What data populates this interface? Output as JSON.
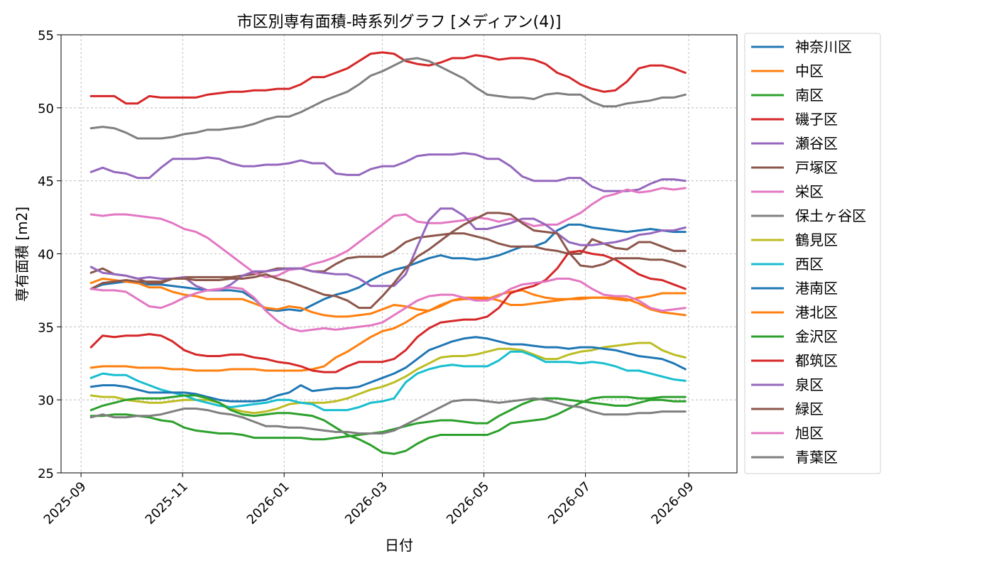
{
  "chart_data": {
    "type": "line",
    "title": "市区別専有面積-時系列グラフ [メディアン(4)]",
    "xlabel": "日付",
    "ylabel": "専有面積 [m2]",
    "xlim": [
      "2025-08-20",
      "2026-09-30"
    ],
    "ylim": [
      25,
      55
    ],
    "x_ticks": [
      "2025-09",
      "2025-11",
      "2026-01",
      "2026-03",
      "2026-05",
      "2026-07",
      "2026-09"
    ],
    "y_ticks": [
      25,
      30,
      35,
      40,
      45,
      50,
      55
    ],
    "grid": true,
    "legend_position": "outside-right",
    "x": [
      "2025-09-07",
      "2025-09-14",
      "2025-09-21",
      "2025-09-28",
      "2025-10-05",
      "2025-10-12",
      "2025-10-19",
      "2025-10-26",
      "2025-11-02",
      "2025-11-09",
      "2025-11-16",
      "2025-11-23",
      "2025-11-30",
      "2025-12-07",
      "2025-12-14",
      "2025-12-21",
      "2025-12-28",
      "2026-01-04",
      "2026-01-11",
      "2026-01-18",
      "2026-01-25",
      "2026-02-01",
      "2026-02-08",
      "2026-02-15",
      "2026-02-22",
      "2026-03-01",
      "2026-03-08",
      "2026-03-15",
      "2026-03-22",
      "2026-03-29",
      "2026-04-05",
      "2026-04-12",
      "2026-04-19",
      "2026-04-26",
      "2026-05-03",
      "2026-05-10",
      "2026-05-17",
      "2026-05-24",
      "2026-05-31",
      "2026-06-07",
      "2026-06-14",
      "2026-06-21",
      "2026-06-28",
      "2026-07-05",
      "2026-07-12",
      "2026-07-19",
      "2026-07-26",
      "2026-08-02",
      "2026-08-09",
      "2026-08-16",
      "2026-08-23",
      "2026-08-30"
    ],
    "series": [
      {
        "name": "神奈川区",
        "color": "#1f77b4",
        "values": [
          37.6,
          37.9,
          38.0,
          38.1,
          38.0,
          37.9,
          37.9,
          37.8,
          37.7,
          37.6,
          37.5,
          37.5,
          37.5,
          37.4,
          36.9,
          36.2,
          36.1,
          36.2,
          36.1,
          36.5,
          36.9,
          37.2,
          37.4,
          37.7,
          38.2,
          38.6,
          38.9,
          39.1,
          39.4,
          39.7,
          39.9,
          39.7,
          39.7,
          39.6,
          39.7,
          39.9,
          40.2,
          40.5,
          40.5,
          40.8,
          41.6,
          42.0,
          42.0,
          41.8,
          41.7,
          41.6,
          41.5,
          41.6,
          41.7,
          41.6,
          41.5,
          41.5
        ]
      },
      {
        "name": "中区",
        "color": "#ff7f0e",
        "values": [
          38.0,
          38.3,
          38.2,
          38.1,
          38.0,
          37.7,
          37.7,
          37.4,
          37.2,
          37.1,
          36.9,
          36.9,
          36.9,
          36.9,
          36.6,
          36.3,
          36.2,
          36.4,
          36.3,
          36.0,
          35.8,
          35.7,
          35.7,
          35.8,
          35.9,
          36.2,
          36.5,
          36.4,
          36.2,
          36.1,
          36.4,
          36.8,
          37.0,
          37.0,
          37.0,
          36.8,
          36.5,
          36.5,
          36.6,
          36.7,
          36.8,
          36.9,
          37.0,
          37.0,
          37.0,
          37.0,
          36.9,
          36.6,
          36.2,
          36.0,
          35.9,
          35.8
        ]
      },
      {
        "name": "南区",
        "color": "#2ca02c",
        "values": [
          28.9,
          28.9,
          29.0,
          29.0,
          28.9,
          28.8,
          28.6,
          28.5,
          28.1,
          27.9,
          27.8,
          27.7,
          27.7,
          27.6,
          27.4,
          27.4,
          27.4,
          27.4,
          27.4,
          27.3,
          27.3,
          27.4,
          27.5,
          27.6,
          27.7,
          27.8,
          28.0,
          28.2,
          28.4,
          28.5,
          28.6,
          28.6,
          28.5,
          28.4,
          28.4,
          28.9,
          29.3,
          29.7,
          30.0,
          30.1,
          30.1,
          30.0,
          29.9,
          29.8,
          29.7,
          29.6,
          29.6,
          29.8,
          30.0,
          30.0,
          29.9,
          29.9
        ]
      },
      {
        "name": "磯子区",
        "color": "#d62728",
        "values": [
          50.8,
          50.8,
          50.8,
          50.3,
          50.3,
          50.8,
          50.7,
          50.7,
          50.7,
          50.7,
          50.9,
          51.0,
          51.1,
          51.1,
          51.2,
          51.2,
          51.3,
          51.3,
          51.6,
          52.1,
          52.1,
          52.4,
          52.7,
          53.2,
          53.7,
          53.8,
          53.7,
          53.2,
          53.0,
          52.9,
          53.1,
          53.4,
          53.4,
          53.6,
          53.5,
          53.3,
          53.4,
          53.4,
          53.3,
          53.0,
          52.4,
          52.1,
          51.6,
          51.3,
          51.1,
          51.2,
          51.8,
          52.7,
          52.9,
          52.9,
          52.7,
          52.4
        ]
      },
      {
        "name": "瀬谷区",
        "color": "#9467bd",
        "values": [
          45.6,
          45.9,
          45.6,
          45.5,
          45.2,
          45.2,
          45.9,
          46.5,
          46.5,
          46.5,
          46.6,
          46.5,
          46.2,
          46.0,
          46.0,
          46.1,
          46.1,
          46.2,
          46.4,
          46.2,
          46.2,
          45.5,
          45.4,
          45.4,
          45.8,
          46.0,
          46.0,
          46.3,
          46.7,
          46.8,
          46.8,
          46.8,
          46.9,
          46.8,
          46.5,
          46.5,
          46.0,
          45.3,
          45.0,
          45.0,
          45.0,
          45.2,
          45.2,
          44.6,
          44.3,
          44.3,
          44.3,
          44.4,
          44.8,
          45.1,
          45.1,
          45.0
        ]
      },
      {
        "name": "戸塚区",
        "color": "#8c564b",
        "values": [
          38.7,
          39.0,
          38.6,
          38.5,
          38.3,
          38.0,
          38.0,
          38.3,
          38.4,
          38.4,
          38.4,
          38.4,
          38.4,
          38.5,
          38.6,
          38.8,
          39.0,
          39.0,
          39.0,
          38.8,
          38.8,
          39.3,
          39.7,
          39.8,
          39.8,
          39.8,
          40.2,
          40.8,
          41.1,
          41.2,
          41.3,
          41.4,
          41.4,
          41.2,
          41.0,
          40.7,
          40.5,
          40.5,
          40.5,
          40.3,
          40.2,
          40.0,
          40.0,
          41.0,
          40.7,
          40.4,
          40.3,
          40.8,
          40.8,
          40.5,
          40.2,
          40.2
        ]
      },
      {
        "name": "栄区",
        "color": "#e377c2",
        "values": [
          42.7,
          42.6,
          42.7,
          42.7,
          42.6,
          42.5,
          42.4,
          42.1,
          41.7,
          41.5,
          41.1,
          40.5,
          39.9,
          39.3,
          38.7,
          38.4,
          38.5,
          38.9,
          39.0,
          39.3,
          39.5,
          39.8,
          40.2,
          40.8,
          41.4,
          42.0,
          42.6,
          42.7,
          42.2,
          42.1,
          42.1,
          42.2,
          42.3,
          42.5,
          42.4,
          42.2,
          42.4,
          42.2,
          41.9,
          42.0,
          42.0,
          42.4,
          42.8,
          43.4,
          43.9,
          44.1,
          44.4,
          44.2,
          44.3,
          44.5,
          44.4,
          44.5
        ]
      },
      {
        "name": "保土ヶ谷区",
        "color": "#7f7f7f",
        "values": [
          48.6,
          48.7,
          48.6,
          48.3,
          47.9,
          47.9,
          47.9,
          48.0,
          48.2,
          48.3,
          48.5,
          48.5,
          48.6,
          48.7,
          48.9,
          49.2,
          49.4,
          49.4,
          49.7,
          50.1,
          50.5,
          50.8,
          51.1,
          51.6,
          52.2,
          52.5,
          52.9,
          53.3,
          53.4,
          53.2,
          52.8,
          52.4,
          52.0,
          51.4,
          50.9,
          50.8,
          50.7,
          50.7,
          50.6,
          50.9,
          51.0,
          50.9,
          50.9,
          50.4,
          50.1,
          50.1,
          50.3,
          50.4,
          50.5,
          50.7,
          50.7,
          50.9
        ]
      },
      {
        "name": "鶴見区",
        "color": "#bcbd22",
        "values": [
          30.3,
          30.2,
          30.2,
          30.0,
          29.9,
          29.8,
          29.8,
          29.9,
          30.0,
          30.0,
          30.0,
          29.8,
          29.4,
          29.2,
          29.1,
          29.2,
          29.4,
          29.7,
          29.8,
          29.8,
          29.8,
          29.9,
          30.1,
          30.4,
          30.7,
          30.9,
          31.2,
          31.6,
          32.1,
          32.5,
          32.9,
          33.0,
          33.0,
          33.1,
          33.3,
          33.5,
          33.5,
          33.4,
          33.1,
          32.8,
          32.8,
          33.1,
          33.3,
          33.4,
          33.6,
          33.7,
          33.8,
          33.9,
          33.9,
          33.4,
          33.1,
          32.9
        ]
      },
      {
        "name": "西区",
        "color": "#17becf",
        "values": [
          31.5,
          31.8,
          31.7,
          31.7,
          31.3,
          31.0,
          30.7,
          30.5,
          30.3,
          30.0,
          29.8,
          29.6,
          29.5,
          29.6,
          29.7,
          29.8,
          30.0,
          30.0,
          29.8,
          29.7,
          29.3,
          29.3,
          29.3,
          29.5,
          29.8,
          29.9,
          30.1,
          31.2,
          31.8,
          32.1,
          32.3,
          32.4,
          32.3,
          32.3,
          32.3,
          32.7,
          33.3,
          33.3,
          33.0,
          32.6,
          32.6,
          32.6,
          32.5,
          32.6,
          32.5,
          32.3,
          32.0,
          32.0,
          31.8,
          31.6,
          31.4,
          31.3
        ]
      },
      {
        "name": "港南区",
        "color": "#1f77b4",
        "values": [
          30.9,
          31.0,
          31.0,
          30.9,
          30.7,
          30.5,
          30.5,
          30.5,
          30.5,
          30.4,
          30.2,
          30.0,
          29.9,
          29.9,
          29.9,
          30.0,
          30.3,
          30.5,
          31.0,
          30.6,
          30.7,
          30.8,
          30.8,
          30.9,
          31.2,
          31.5,
          31.8,
          32.2,
          32.8,
          33.4,
          33.7,
          34.0,
          34.2,
          34.3,
          34.2,
          34.0,
          33.8,
          33.8,
          33.7,
          33.6,
          33.6,
          33.5,
          33.6,
          33.6,
          33.5,
          33.4,
          33.2,
          33.0,
          32.9,
          32.8,
          32.5,
          32.1
        ]
      },
      {
        "name": "港北区",
        "color": "#ff7f0e",
        "values": [
          32.2,
          32.3,
          32.3,
          32.3,
          32.2,
          32.2,
          32.2,
          32.1,
          32.1,
          32.0,
          32.0,
          32.0,
          32.1,
          32.1,
          32.1,
          32.0,
          32.0,
          32.0,
          32.0,
          32.1,
          32.3,
          32.9,
          33.3,
          33.8,
          34.3,
          34.7,
          34.9,
          35.3,
          35.8,
          36.1,
          36.5,
          36.8,
          36.9,
          36.9,
          36.9,
          37.2,
          37.4,
          37.5,
          37.2,
          37.0,
          36.9,
          36.9,
          36.9,
          37.0,
          37.0,
          36.9,
          36.8,
          37.0,
          37.1,
          37.3,
          37.3,
          37.3
        ]
      },
      {
        "name": "金沢区",
        "color": "#2ca02c",
        "values": [
          29.3,
          29.6,
          29.8,
          30.0,
          30.1,
          30.1,
          30.1,
          30.2,
          30.3,
          30.3,
          30.1,
          29.8,
          29.3,
          29.0,
          28.9,
          29.0,
          29.1,
          29.1,
          29.0,
          28.9,
          28.6,
          28.1,
          27.6,
          27.3,
          26.9,
          26.4,
          26.3,
          26.5,
          27.0,
          27.4,
          27.6,
          27.6,
          27.6,
          27.6,
          27.6,
          27.9,
          28.4,
          28.5,
          28.6,
          28.7,
          29.0,
          29.4,
          29.8,
          30.1,
          30.2,
          30.2,
          30.2,
          30.1,
          30.1,
          30.2,
          30.2,
          30.2
        ]
      },
      {
        "name": "都筑区",
        "color": "#d62728",
        "values": [
          33.6,
          34.4,
          34.3,
          34.4,
          34.4,
          34.5,
          34.4,
          34.0,
          33.4,
          33.1,
          33.0,
          33.0,
          33.1,
          33.1,
          32.9,
          32.8,
          32.6,
          32.5,
          32.3,
          32.0,
          31.9,
          31.9,
          32.3,
          32.6,
          32.6,
          32.6,
          32.8,
          33.4,
          34.3,
          34.9,
          35.3,
          35.4,
          35.5,
          35.5,
          35.7,
          36.3,
          37.3,
          37.6,
          37.8,
          38.2,
          39.0,
          40.1,
          40.2,
          40.0,
          39.9,
          39.6,
          39.1,
          38.6,
          38.3,
          38.2,
          37.9,
          37.6
        ]
      },
      {
        "name": "泉区",
        "color": "#9467bd",
        "values": [
          39.1,
          38.7,
          38.6,
          38.5,
          38.3,
          38.4,
          38.3,
          38.3,
          38.4,
          37.8,
          37.5,
          37.5,
          37.9,
          38.5,
          38.8,
          38.8,
          38.9,
          39.0,
          39.0,
          38.8,
          38.7,
          38.6,
          38.6,
          38.3,
          37.8,
          37.8,
          37.8,
          38.6,
          40.5,
          42.3,
          43.1,
          43.1,
          42.6,
          41.7,
          41.7,
          41.9,
          42.1,
          42.4,
          42.4,
          42.0,
          41.4,
          40.8,
          40.6,
          40.6,
          40.7,
          40.8,
          41.0,
          41.3,
          41.4,
          41.6,
          41.6,
          41.8
        ]
      },
      {
        "name": "緑区",
        "color": "#8c564b",
        "values": [
          37.6,
          38.0,
          38.1,
          38.2,
          38.1,
          38.1,
          38.1,
          38.3,
          38.3,
          38.2,
          38.2,
          38.2,
          38.3,
          38.3,
          38.4,
          38.6,
          38.3,
          38.1,
          37.8,
          37.5,
          37.2,
          37.1,
          36.8,
          36.3,
          36.3,
          37.1,
          38.0,
          39.0,
          39.8,
          40.3,
          40.9,
          41.5,
          42.0,
          42.4,
          42.8,
          42.8,
          42.7,
          42.1,
          41.6,
          41.5,
          41.4,
          40.1,
          39.2,
          39.1,
          39.3,
          39.7,
          39.7,
          39.7,
          39.6,
          39.6,
          39.4,
          39.1
        ]
      },
      {
        "name": "旭区",
        "color": "#e377c2",
        "values": [
          37.6,
          37.5,
          37.5,
          37.4,
          36.9,
          36.4,
          36.3,
          36.6,
          37.0,
          37.3,
          37.5,
          37.6,
          37.7,
          37.6,
          37.0,
          36.1,
          35.4,
          34.9,
          34.7,
          34.8,
          34.9,
          34.8,
          34.9,
          35.0,
          35.1,
          35.3,
          35.8,
          36.3,
          36.8,
          37.1,
          37.2,
          37.2,
          37.0,
          36.8,
          36.8,
          37.1,
          37.6,
          37.9,
          38.0,
          38.1,
          38.3,
          38.3,
          38.1,
          37.6,
          37.2,
          37.1,
          37.1,
          36.8,
          36.3,
          36.1,
          36.2,
          36.3
        ]
      },
      {
        "name": "青葉区",
        "color": "#7f7f7f",
        "values": [
          28.8,
          29.0,
          28.8,
          28.8,
          28.9,
          28.9,
          29.0,
          29.2,
          29.4,
          29.4,
          29.3,
          29.1,
          29.0,
          28.8,
          28.5,
          28.2,
          28.2,
          28.1,
          28.1,
          28.0,
          27.9,
          27.8,
          27.8,
          27.7,
          27.7,
          27.7,
          27.9,
          28.3,
          28.7,
          29.1,
          29.5,
          29.9,
          30.0,
          30.0,
          29.9,
          29.8,
          29.9,
          30.0,
          30.1,
          30.0,
          29.8,
          29.6,
          29.5,
          29.2,
          29.0,
          29.0,
          29.0,
          29.1,
          29.1,
          29.2,
          29.2,
          29.2
        ]
      }
    ]
  }
}
